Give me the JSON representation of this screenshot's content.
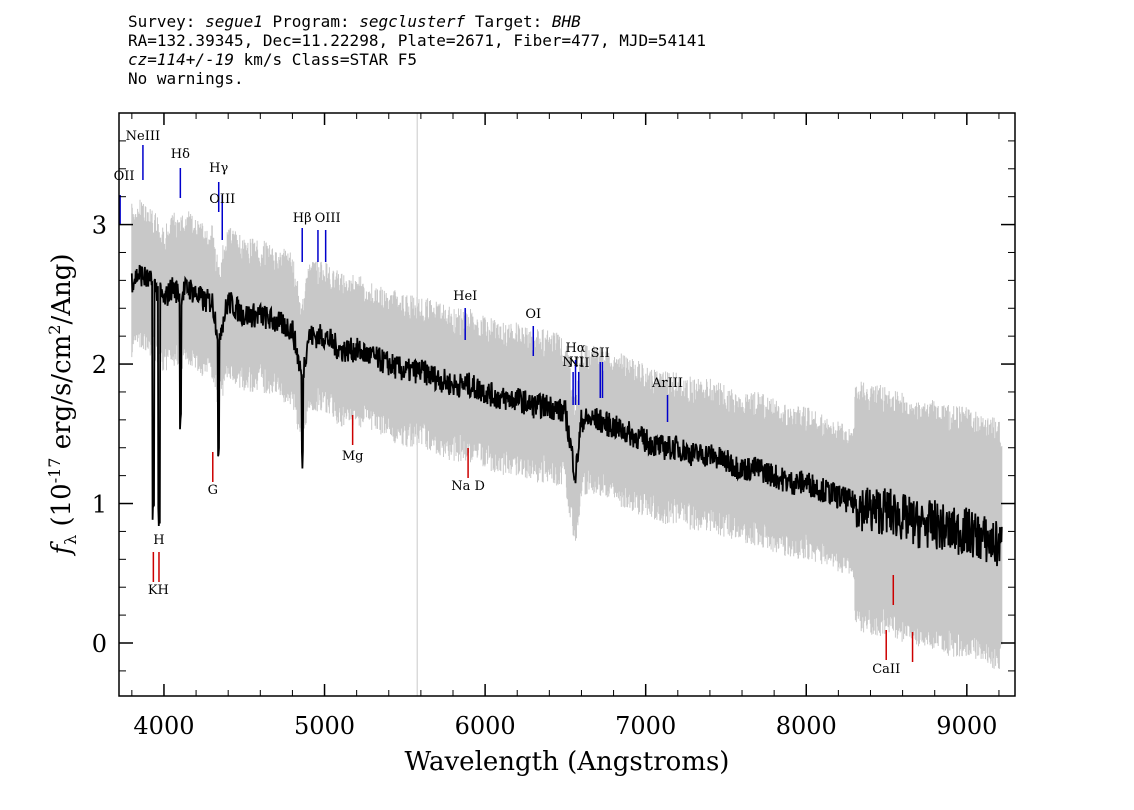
{
  "header": {
    "survey_label": "Survey:",
    "survey": "segue1",
    "program_label": "Program:",
    "program": "segclusterf",
    "target_label": "Target:",
    "target": "BHB",
    "line2": "RA=132.39345, Dec=11.22298, Plate=2671, Fiber=477, MJD=54141",
    "cz_value": "cz=114+/-19",
    "cz_rest": " km/s Class=STAR F5",
    "warnings": "No warnings."
  },
  "chart_data": {
    "type": "line",
    "xlabel": "Wavelength (Angstroms)",
    "ylabel": "f_λ (10^-17 erg/s/cm^2/Ang)",
    "xlim": [
      3720,
      9300
    ],
    "ylim": [
      -0.38,
      3.8
    ],
    "xticks": [
      4000,
      5000,
      6000,
      7000,
      8000,
      9000
    ],
    "yticks": [
      0,
      1,
      2,
      3
    ],
    "grid": false,
    "colors": {
      "flux": "#000000",
      "error_band": "#c8c8c8",
      "emission": "#0000cc",
      "absorption": "#cc0000"
    },
    "series": [
      {
        "role": "flux",
        "x": [
          3800,
          3850,
          3900,
          3950,
          4000,
          4050,
          4100,
          4150,
          4200,
          4250,
          4300,
          4340,
          4400,
          4450,
          4500,
          4600,
          4700,
          4800,
          4860,
          4900,
          5000,
          5100,
          5200,
          5300,
          5400,
          5500,
          5600,
          5700,
          5800,
          5900,
          6000,
          6100,
          6200,
          6300,
          6400,
          6500,
          6563,
          6600,
          6700,
          6800,
          6900,
          7000,
          7100,
          7200,
          7300,
          7400,
          7500,
          7600,
          7700,
          7800,
          7900,
          8000,
          8100,
          8200,
          8300,
          8400,
          8500,
          8600,
          8700,
          8800,
          8900,
          9000,
          9100,
          9200
        ],
        "y": [
          2.6,
          2.65,
          2.6,
          2.55,
          2.45,
          2.55,
          2.5,
          2.55,
          2.5,
          2.45,
          2.45,
          2.2,
          2.45,
          2.4,
          2.35,
          2.35,
          2.3,
          2.25,
          1.9,
          2.2,
          2.2,
          2.1,
          2.1,
          2.05,
          2.0,
          1.95,
          1.95,
          1.9,
          1.85,
          1.85,
          1.8,
          1.75,
          1.75,
          1.7,
          1.7,
          1.65,
          1.2,
          1.6,
          1.6,
          1.55,
          1.5,
          1.45,
          1.4,
          1.4,
          1.35,
          1.35,
          1.3,
          1.25,
          1.25,
          1.2,
          1.15,
          1.15,
          1.1,
          1.05,
          1.0,
          0.95,
          0.95,
          0.9,
          0.85,
          0.85,
          0.8,
          0.8,
          0.75,
          0.7
        ]
      }
    ],
    "lines": [
      {
        "label": "OII",
        "x": 3727,
        "kind": "emission"
      },
      {
        "label": "NeIII",
        "x": 3869,
        "kind": "emission"
      },
      {
        "label": "Hδ",
        "x": 4102,
        "kind": "emission"
      },
      {
        "label": "Hγ",
        "x": 4341,
        "kind": "emission"
      },
      {
        "label": "OIII",
        "x": 4363,
        "kind": "emission"
      },
      {
        "label": "Hβ",
        "x": 4861,
        "kind": "emission"
      },
      {
        "label": "OIII",
        "x": 4959,
        "kind": "emission",
        "hidden_label": true
      },
      {
        "label": "OIII",
        "x": 5007,
        "kind": "emission"
      },
      {
        "label": "HeI",
        "x": 5876,
        "kind": "emission"
      },
      {
        "label": "OI",
        "x": 6300,
        "kind": "emission"
      },
      {
        "label": "NII",
        "x": 6548,
        "kind": "emission"
      },
      {
        "label": "Hα",
        "x": 6563,
        "kind": "emission"
      },
      {
        "label": "NII",
        "x": 6583,
        "kind": "emission"
      },
      {
        "label": "SII",
        "x": 6717,
        "kind": "emission"
      },
      {
        "label": "SII",
        "x": 6731,
        "kind": "emission",
        "hidden_label": true
      },
      {
        "label": "ArIII",
        "x": 7136,
        "kind": "emission"
      },
      {
        "label": "K",
        "x": 3934,
        "kind": "absorption"
      },
      {
        "label": "H",
        "x": 3969,
        "kind": "absorption"
      },
      {
        "label": "G",
        "x": 4304,
        "kind": "absorption"
      },
      {
        "label": "Mg",
        "x": 5175,
        "kind": "absorption"
      },
      {
        "label": "Na D",
        "x": 5894,
        "kind": "absorption"
      },
      {
        "label": "CaII",
        "x": 8498,
        "kind": "absorption"
      },
      {
        "label": "CaII",
        "x": 8542,
        "kind": "absorption",
        "hidden_label": true
      },
      {
        "label": "CaII",
        "x": 8662,
        "kind": "absorption",
        "hidden_label": true
      }
    ]
  }
}
